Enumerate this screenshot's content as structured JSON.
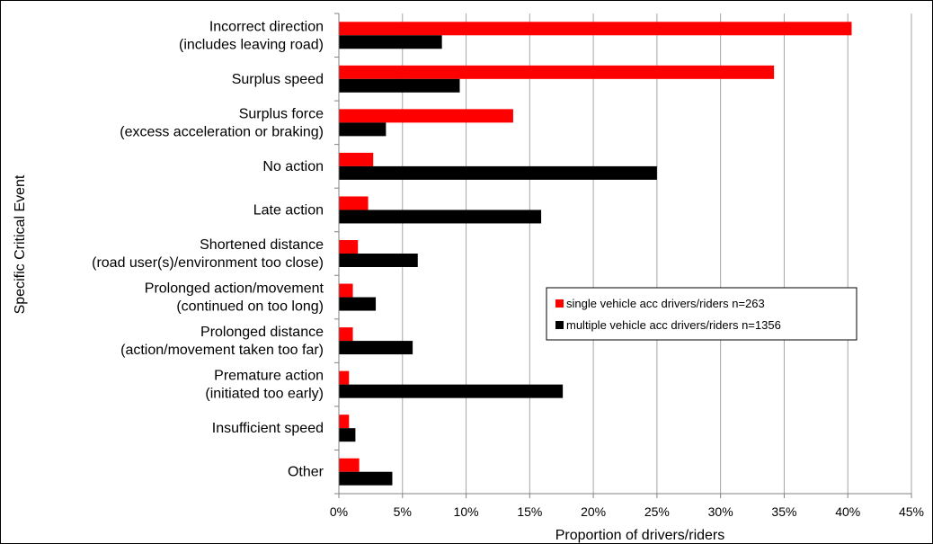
{
  "chart_data": {
    "type": "bar",
    "orientation": "horizontal",
    "categories": [
      [
        "Incorrect direction",
        "(includes leaving road)"
      ],
      [
        "Surplus speed"
      ],
      [
        "Surplus force",
        "(excess acceleration or braking)"
      ],
      [
        "No action"
      ],
      [
        "Late action"
      ],
      [
        "Shortened distance",
        "(road user(s)/environment too close)"
      ],
      [
        "Prolonged action/movement",
        "(continued on too long)"
      ],
      [
        "Prolonged distance",
        "(action/movement taken too far)"
      ],
      [
        "Premature action",
        "(initiated too early)"
      ],
      [
        "Insufficient speed"
      ],
      [
        "Other"
      ]
    ],
    "series": [
      {
        "name": "single vehicle acc drivers/riders  n=263",
        "color": "#ff0000",
        "values": [
          0.403,
          0.342,
          0.137,
          0.027,
          0.023,
          0.015,
          0.011,
          0.011,
          0.008,
          0.008,
          0.016
        ]
      },
      {
        "name": "multiple vehicle acc drivers/riders  n=1356",
        "color": "#000000",
        "values": [
          0.081,
          0.095,
          0.037,
          0.25,
          0.159,
          0.062,
          0.029,
          0.058,
          0.176,
          0.013,
          0.042
        ]
      }
    ],
    "x_ticks": [
      "0%",
      "5%",
      "10%",
      "15%",
      "20%",
      "25%",
      "30%",
      "35%",
      "40%",
      "45%"
    ],
    "xlim": [
      0,
      0.45
    ],
    "xlabel": "Proportion of drivers/riders",
    "ylabel": "Specific Critical Event",
    "grid": "vertical",
    "legend_position": "middle-right"
  }
}
